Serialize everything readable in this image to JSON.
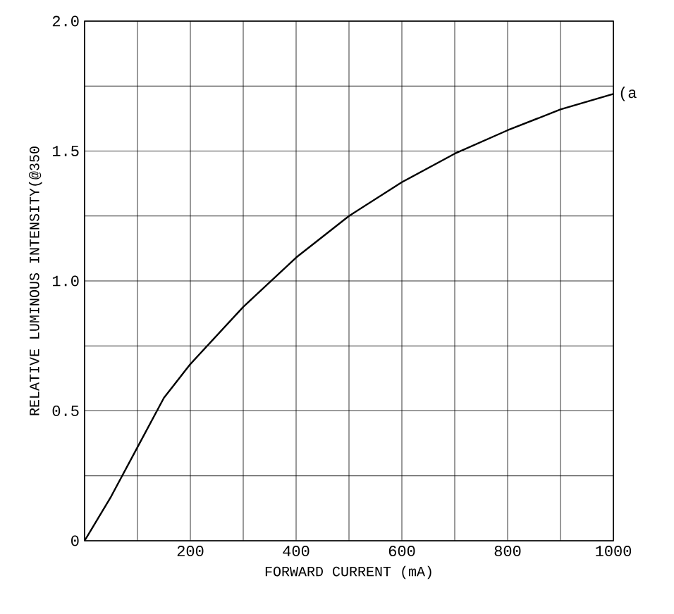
{
  "chart_data": {
    "type": "line",
    "xlabel": "FORWARD CURRENT (mA)",
    "ylabel": "RELATIVE LUMINOUS INTENSITY(@350",
    "x": [
      0,
      50,
      100,
      150,
      200,
      300,
      400,
      500,
      600,
      700,
      800,
      900,
      1000
    ],
    "series": [
      {
        "color": "#000000",
        "values": [
          0,
          0.17,
          0.36,
          0.55,
          0.68,
          0.9,
          1.09,
          1.25,
          1.38,
          1.49,
          1.58,
          1.66,
          1.72
        ]
      }
    ],
    "xlim": [
      0,
      1000
    ],
    "ylim": [
      0,
      2.0
    ],
    "xticks": [
      {
        "value": 0,
        "label": null
      },
      {
        "value": 100,
        "label": null
      },
      200,
      {
        "value": 300,
        "label": null
      },
      400,
      {
        "value": 500,
        "label": null
      },
      600,
      {
        "value": 700,
        "label": null
      },
      800,
      {
        "value": 900,
        "label": null
      },
      1000
    ],
    "yticks": [
      0,
      {
        "value": 0.25,
        "label": null
      },
      0.5,
      {
        "value": 0.75,
        "label": null
      },
      {
        "value": 1.0,
        "label": "1.0"
      },
      {
        "value": 1.25,
        "label": null
      },
      1.5,
      {
        "value": 1.75,
        "label": null
      },
      {
        "value": 2.0,
        "label": "2.0"
      }
    ],
    "grid": true,
    "marker": "none",
    "line_style": "solid",
    "annotations": [
      {
        "text": "(a",
        "x": 1000,
        "y": 1.72
      }
    ]
  }
}
